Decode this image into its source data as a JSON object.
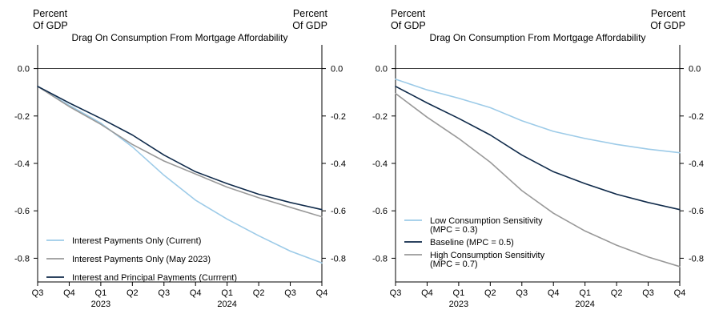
{
  "chart_data": [
    {
      "type": "line",
      "title": "Drag On Consumption From Mortgage Affordability",
      "ylabel_left": [
        "Percent",
        "Of GDP"
      ],
      "ylabel_right": [
        "Percent",
        "Of GDP"
      ],
      "ylim": [
        -0.9,
        0.1
      ],
      "yticks": [
        0.0,
        -0.2,
        -0.4,
        -0.6,
        -0.8
      ],
      "ytick_labels": [
        "0.0",
        "-0.2",
        "-0.4",
        "-0.6",
        "-0.8"
      ],
      "x_tick_labels": [
        "Q3",
        "Q4",
        "Q1",
        "Q2",
        "Q3",
        "Q4",
        "Q1",
        "Q2",
        "Q3",
        "Q4"
      ],
      "x_year_labels": [
        {
          "index": 2,
          "label": "2023"
        },
        {
          "index": 6,
          "label": "2024"
        }
      ],
      "legend_position": "bottom-left",
      "series": [
        {
          "name": "Interest Payments Only (Current)",
          "color": "#9dcbe8",
          "values": [
            -0.075,
            -0.155,
            -0.23,
            -0.33,
            -0.45,
            -0.555,
            -0.635,
            -0.705,
            -0.77,
            -0.82
          ]
        },
        {
          "name": "Interest Payments Only (May 2023)",
          "color": "#999999",
          "values": [
            -0.075,
            -0.16,
            -0.235,
            -0.32,
            -0.39,
            -0.445,
            -0.5,
            -0.545,
            -0.585,
            -0.625
          ]
        },
        {
          "name": "Interest and Principal Payments (Currrent)",
          "color": "#0f2a4a",
          "values": [
            -0.075,
            -0.145,
            -0.21,
            -0.28,
            -0.365,
            -0.435,
            -0.485,
            -0.53,
            -0.565,
            -0.595
          ]
        }
      ]
    },
    {
      "type": "line",
      "title": "Drag On Consumption From Mortgage Affordability",
      "ylabel_left": [
        "Percent",
        "Of GDP"
      ],
      "ylabel_right": [
        "Percent",
        "Of GDP"
      ],
      "ylim": [
        -0.9,
        0.1
      ],
      "yticks": [
        0.0,
        -0.2,
        -0.4,
        -0.6,
        -0.8
      ],
      "ytick_labels": [
        "0.0",
        "-0.2",
        "-0.4",
        "-0.6",
        "-0.8"
      ],
      "x_tick_labels": [
        "Q3",
        "Q4",
        "Q1",
        "Q2",
        "Q3",
        "Q4",
        "Q1",
        "Q2",
        "Q3",
        "Q4"
      ],
      "x_year_labels": [
        {
          "index": 2,
          "label": "2023"
        },
        {
          "index": 6,
          "label": "2024"
        }
      ],
      "legend_position": "bottom-left",
      "series": [
        {
          "name": [
            "Low Consumption Sensitivity",
            "(MPC = 0.3)"
          ],
          "color": "#9dcbe8",
          "values": [
            -0.045,
            -0.09,
            -0.125,
            -0.165,
            -0.22,
            -0.265,
            -0.295,
            -0.32,
            -0.34,
            -0.355
          ]
        },
        {
          "name": [
            "Baseline (MPC = 0.5)"
          ],
          "color": "#0f2a4a",
          "values": [
            -0.075,
            -0.145,
            -0.21,
            -0.28,
            -0.365,
            -0.435,
            -0.485,
            -0.53,
            -0.565,
            -0.595
          ]
        },
        {
          "name": [
            "High Consumption Sensitivity",
            "(MPC = 0.7)"
          ],
          "color": "#999999",
          "values": [
            -0.105,
            -0.205,
            -0.295,
            -0.395,
            -0.515,
            -0.61,
            -0.685,
            -0.745,
            -0.795,
            -0.835
          ]
        }
      ]
    }
  ]
}
